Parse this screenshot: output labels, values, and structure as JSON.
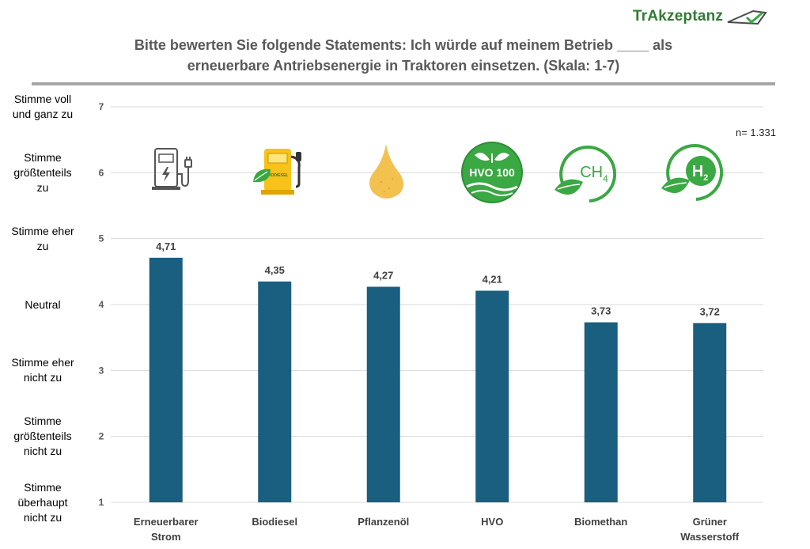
{
  "logo": {
    "text": "TrAkzeptanz"
  },
  "title_line1": "Bitte bewerten Sie folgende Statements: Ich würde auf meinem Betrieb ____ als",
  "title_line2": "erneuerbare Antriebsenergie in Traktoren einsetzen. (Skala: 1-7)",
  "sample_size": "n= 1.331",
  "icons": [
    "ev-charger-icon",
    "biodiesel-pump-icon",
    "oil-drop-icon",
    "hvo100-icon",
    "ch4-leaf-icon",
    "h2-leaf-icon"
  ],
  "icon_texts": {
    "biodiesel": "BIODIESEL",
    "hvo": "HVO 100",
    "ch4": "CH",
    "ch4_sub": "4",
    "h2": "H",
    "h2_sub": "2"
  },
  "y_scale_labels": [
    {
      "value": 7,
      "lines": [
        "Stimme voll",
        "und ganz zu"
      ]
    },
    {
      "value": 6,
      "lines": [
        "Stimme",
        "größtenteils",
        "zu"
      ]
    },
    {
      "value": 5,
      "lines": [
        "Stimme eher",
        "zu"
      ]
    },
    {
      "value": 4,
      "lines": [
        "Neutral"
      ]
    },
    {
      "value": 3,
      "lines": [
        "Stimme eher",
        "nicht zu"
      ]
    },
    {
      "value": 2,
      "lines": [
        "Stimme",
        "größtenteils",
        "nicht zu"
      ]
    },
    {
      "value": 1,
      "lines": [
        "Stimme",
        "überhaupt",
        "nicht zu"
      ]
    }
  ],
  "colors": {
    "bar": "#1a5e80",
    "grid": "#d9d9d9",
    "green": "#3aa843"
  },
  "chart_data": {
    "type": "bar",
    "categories": [
      [
        "Erneuerbarer",
        "Strom"
      ],
      [
        "Biodiesel"
      ],
      [
        "Pflanzenöl"
      ],
      [
        "HVO"
      ],
      [
        "Biomethan"
      ],
      [
        "Grüner",
        "Wasserstoff"
      ]
    ],
    "values": [
      4.71,
      4.35,
      4.27,
      4.21,
      3.73,
      3.72
    ],
    "value_labels": [
      "4,71",
      "4,35",
      "4,27",
      "4,21",
      "3,73",
      "3,72"
    ],
    "yticks": [
      1,
      2,
      3,
      4,
      5,
      6,
      7
    ],
    "ylim": [
      1,
      7
    ],
    "grid": true
  }
}
